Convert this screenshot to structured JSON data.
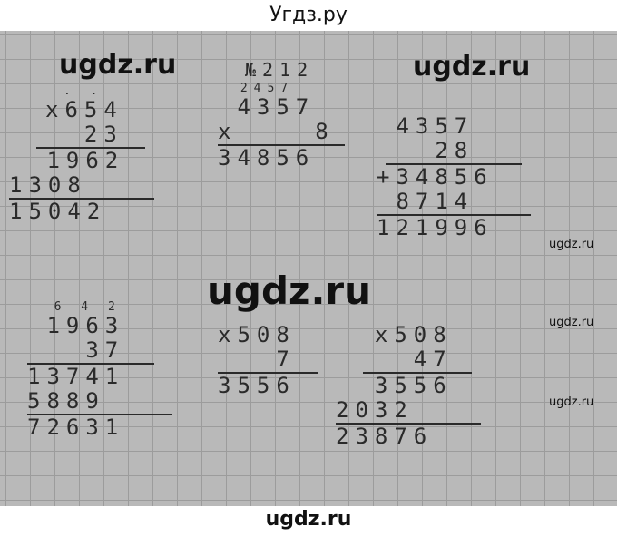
{
  "header": {
    "title": "Угдз.ру"
  },
  "footer": {
    "watermark": "ugdz.ru"
  },
  "watermarks": {
    "big1": "ugdz.ru",
    "big2": "ugdz.ru",
    "huge": "ugdz.ru",
    "small1": "ugdz.ru",
    "small2": "ugdz.ru",
    "small3": "ugdz.ru"
  },
  "calcs": [
    {
      "carry": ". .",
      "a": "x654",
      "b": "  23",
      "p1": " 1962",
      "p2": "1308",
      "r": "15042"
    },
    {
      "label": "№212",
      "carry": " 2457",
      "a": " 4357",
      "b": "x    8",
      "r": "34856"
    },
    {
      "a": " 4357",
      "b": "   28",
      "p1": "+34856",
      "p2": " 8714",
      "r": "121996"
    },
    {
      "carry": "  6 4 2",
      "a": " 1963",
      "b": "   37",
      "p1": "13741",
      "p2": "5889",
      "r": "72631"
    },
    {
      "a": "x508",
      "b": "   7",
      "r": "3556"
    },
    {
      "a": "  x508",
      "b": "    47",
      "p1": "  3556",
      "p2": "2032",
      "r": "23876"
    }
  ]
}
